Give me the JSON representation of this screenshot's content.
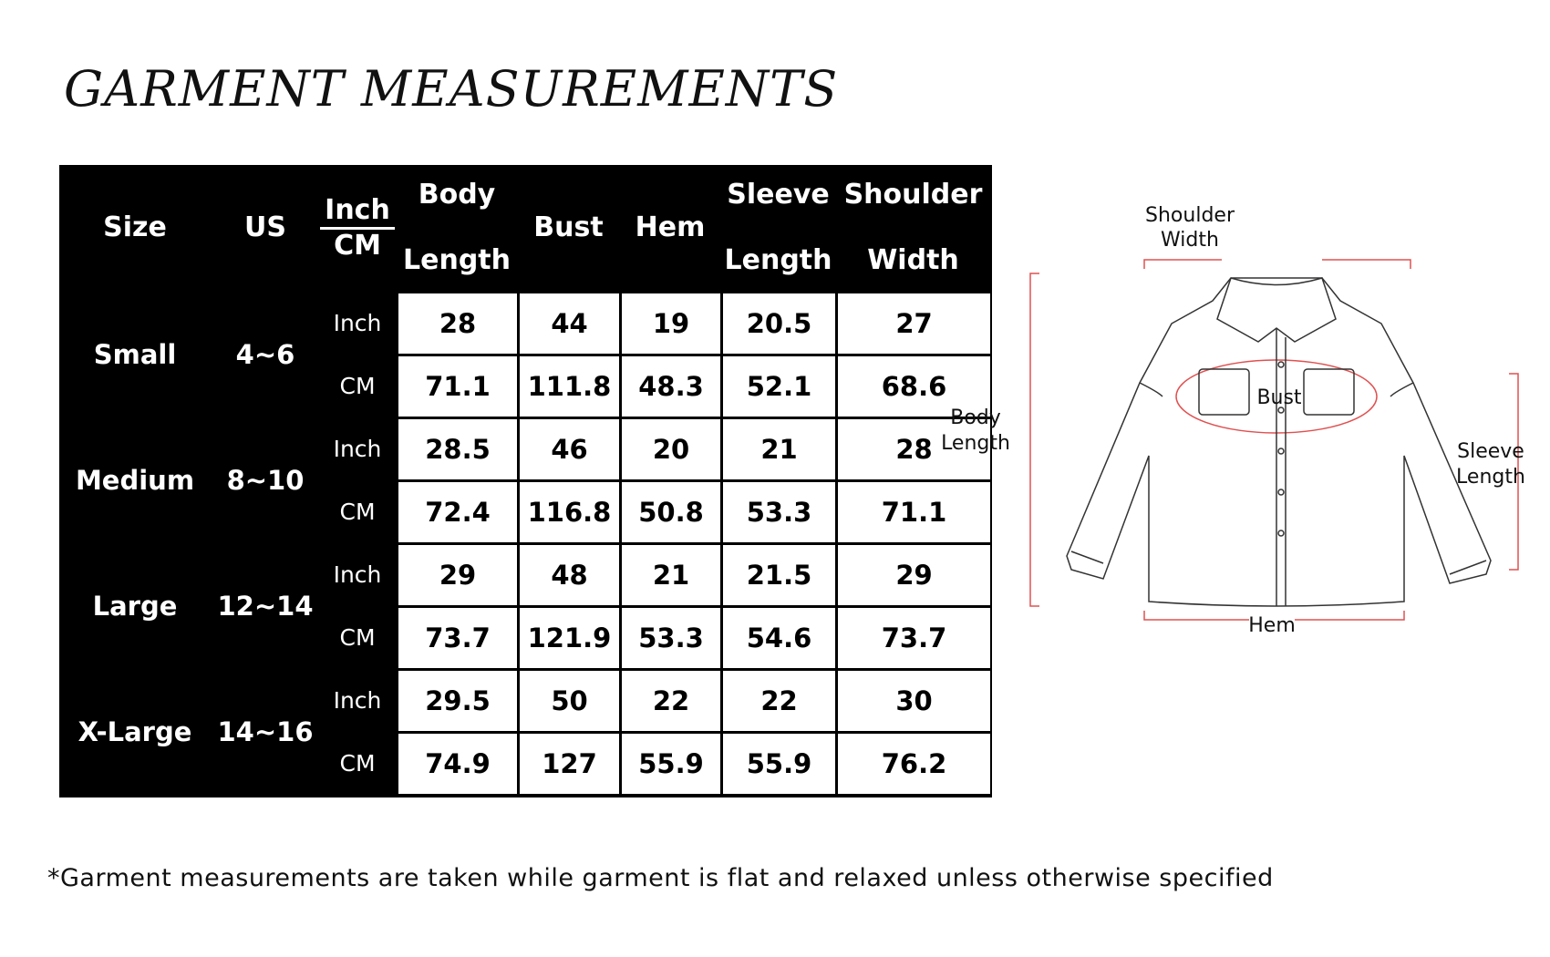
{
  "title": "GARMENT MEASUREMENTS",
  "table": {
    "headers": [
      "Size",
      "US",
      "Inch|CM",
      "Body Length",
      "Bust",
      "Hem",
      "Sleeve Length",
      "Shoulder Width"
    ],
    "unit_header": {
      "top": "Inch",
      "bottom": "CM"
    },
    "units": [
      "Inch",
      "CM"
    ],
    "rows": [
      {
        "size": "Small",
        "us": "4~6",
        "inch": [
          "28",
          "44",
          "19",
          "20.5",
          "27"
        ],
        "cm": [
          "71.1",
          "111.8",
          "48.3",
          "52.1",
          "68.6"
        ]
      },
      {
        "size": "Medium",
        "us": "8~10",
        "inch": [
          "28.5",
          "46",
          "20",
          "21",
          "28"
        ],
        "cm": [
          "72.4",
          "116.8",
          "50.8",
          "53.3",
          "71.1"
        ]
      },
      {
        "size": "Large",
        "us": "12~14",
        "inch": [
          "29",
          "48",
          "21",
          "21.5",
          "29"
        ],
        "cm": [
          "73.7",
          "121.9",
          "53.3",
          "54.6",
          "73.7"
        ]
      },
      {
        "size": "X-Large",
        "us": "14~16",
        "inch": [
          "29.5",
          "50",
          "22",
          "22",
          "30"
        ],
        "cm": [
          "74.9",
          "127",
          "55.9",
          "55.9",
          "76.2"
        ]
      }
    ]
  },
  "diagram": {
    "shoulder": [
      "Shoulder",
      "Width"
    ],
    "body": [
      "Body",
      "Length"
    ],
    "sleeve": [
      "Sleeve",
      "Length"
    ],
    "bust": "Bust",
    "hem": "Hem",
    "accent": "#e05050"
  },
  "footnote": "*Garment measurements are taken while garment is flat and relaxed unless otherwise specified"
}
